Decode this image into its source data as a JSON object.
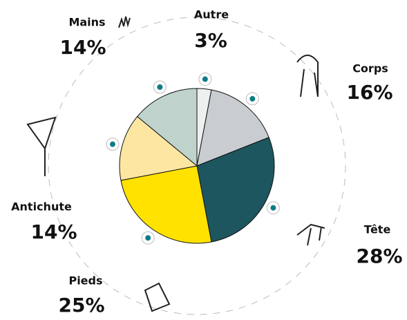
{
  "chart_data": {
    "type": "pie",
    "categories": [
      "Autre",
      "Corps",
      "Tête",
      "Pieds",
      "Antichute",
      "Mains"
    ],
    "values": [
      3,
      16,
      28,
      25,
      14,
      14
    ],
    "value_labels": [
      "3%",
      "16%",
      "28%",
      "25%",
      "14%",
      "14%"
    ],
    "colors": [
      "#eef0ef",
      "#c9ccd1",
      "#1d565e",
      "#ffe200",
      "#fde6a2",
      "#bfd3cc"
    ],
    "marker_color": "#0e7c86"
  }
}
